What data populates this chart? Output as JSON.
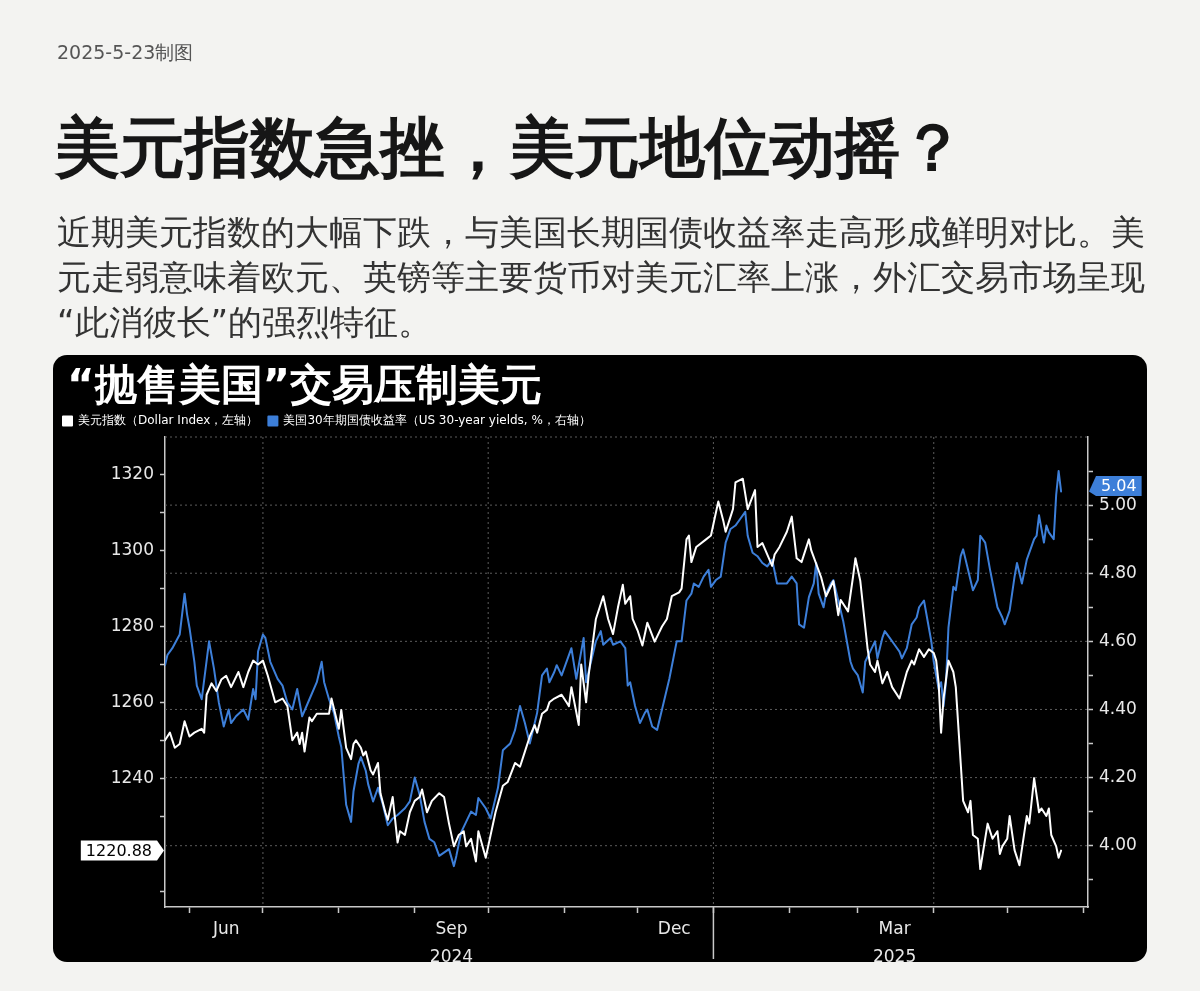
{
  "chart_data": {
    "type": "line",
    "title": "美元指数急挫，美元地位动摇？",
    "subtitle": "近期美元指数的大幅下跌，与美国长期国债收益率走高形成鲜明对比。美元走弱意味着欧元、英镑等主要货币对美元汇率上涨，外汇交易市场呈现“此消彼长”的强烈特征。",
    "annotations": [
      "2025-5-23制图",
      "“抛售美国”交易压制美元"
    ],
    "legend": "top left",
    "grid": true,
    "xlim": [
      "2024-05-22",
      "2025-06-03"
    ],
    "xticks": [
      {
        "value": "2024-06-01",
        "label": null
      },
      {
        "value": "2024-06-16",
        "label": "Jun"
      },
      {
        "value": "2024-07-01",
        "label": null
      },
      {
        "value": "2024-08-01",
        "label": null
      },
      {
        "value": "2024-09-01",
        "label": null
      },
      {
        "value": "2024-09-16",
        "label": "Sep\n2024"
      },
      {
        "value": "2024-10-01",
        "label": null
      },
      {
        "value": "2024-11-01",
        "label": null
      },
      {
        "value": "2024-12-01",
        "label": null
      },
      {
        "value": "2024-12-16",
        "label": "Dec"
      },
      {
        "value": "2025-01-01",
        "label": null
      },
      {
        "value": "2025-02-01",
        "label": null
      },
      {
        "value": "2025-03-01",
        "label": null
      },
      {
        "value": "2025-03-16",
        "label": "Mar\n2025"
      },
      {
        "value": "2025-04-01",
        "label": null
      },
      {
        "value": "2025-05-01",
        "label": null
      },
      {
        "value": "2025-06-01",
        "label": null
      }
    ],
    "ylim": [
      1206,
      1330
    ],
    "yticks": [
      {
        "value": 1210,
        "label": null
      },
      {
        "value": 1220.88,
        "label": "1220.88"
      },
      {
        "value": 1230,
        "label": null
      },
      1240,
      {
        "value": 1250,
        "label": null
      },
      1260,
      {
        "value": 1270,
        "label": null
      },
      1280,
      {
        "value": 1290,
        "label": null
      },
      1300,
      {
        "value": 1310,
        "label": null
      },
      1320
    ],
    "y2lim": [
      3.82,
      5.2
    ],
    "y2ticks": [
      {
        "value": 3.9,
        "label": null
      },
      {
        "value": 4,
        "label": "4.00"
      },
      {
        "value": 4.1,
        "label": null
      },
      {
        "value": 4.2,
        "label": "4.20"
      },
      {
        "value": 4.3,
        "label": null
      },
      {
        "value": 4.4,
        "label": "4.40"
      },
      {
        "value": 4.5,
        "label": null
      },
      {
        "value": 4.6,
        "label": "4.60"
      },
      {
        "value": 4.7,
        "label": null
      },
      {
        "value": 4.8,
        "label": "4.80"
      },
      {
        "value": 4.9,
        "label": null
      },
      {
        "value": 5,
        "label": "5.00"
      },
      {
        "value": 5.04,
        "label": "5.04"
      },
      {
        "value": 5.1,
        "label": null
      }
    ],
    "series": [
      {
        "name": "美元指数（Dollar Index，左轴）",
        "color": "#ffffff",
        "axis": "y",
        "x": [
          "2024-05-22",
          "2024-05-24",
          "2024-05-26",
          "2024-05-28",
          "2024-05-30",
          "2024-06-01",
          "2024-06-03",
          "2024-06-06",
          "2024-06-07",
          "2024-06-08",
          "2024-06-10",
          "2024-06-12",
          "2024-06-14",
          "2024-06-16",
          "2024-06-18",
          "2024-06-21",
          "2024-06-23",
          "2024-06-25",
          "2024-06-27",
          "2024-06-29",
          "2024-07-01",
          "2024-07-03",
          "2024-07-06",
          "2024-07-09",
          "2024-07-11",
          "2024-07-13",
          "2024-07-15",
          "2024-07-16",
          "2024-07-17",
          "2024-07-18",
          "2024-07-20",
          "2024-07-21",
          "2024-07-23",
          "2024-07-28",
          "2024-07-29",
          "2024-08-01",
          "2024-08-02",
          "2024-08-04",
          "2024-08-06",
          "2024-08-07",
          "2024-08-08",
          "2024-08-10",
          "2024-08-11",
          "2024-08-12",
          "2024-08-14",
          "2024-08-15",
          "2024-08-17",
          "2024-08-18",
          "2024-08-20",
          "2024-08-21",
          "2024-08-23",
          "2024-08-25",
          "2024-08-26",
          "2024-08-28",
          "2024-08-30",
          "2024-09-01",
          "2024-09-03",
          "2024-09-04",
          "2024-09-06",
          "2024-09-08",
          "2024-09-11",
          "2024-09-13",
          "2024-09-15",
          "2024-09-17",
          "2024-09-19",
          "2024-09-21",
          "2024-09-22",
          "2024-09-24",
          "2024-09-26",
          "2024-09-27",
          "2024-09-30",
          "2024-10-01",
          "2024-10-04",
          "2024-10-07",
          "2024-10-09",
          "2024-10-12",
          "2024-10-14",
          "2024-10-16",
          "2024-10-18",
          "2024-10-20",
          "2024-10-21",
          "2024-10-23",
          "2024-10-25",
          "2024-10-26",
          "2024-10-28",
          "2024-10-31",
          "2024-11-02",
          "2024-11-03",
          "2024-11-04",
          "2024-11-07",
          "2024-11-08",
          "2024-11-10",
          "2024-11-11",
          "2024-11-14",
          "2024-11-17",
          "2024-11-19",
          "2024-11-21",
          "2024-11-23",
          "2024-11-25",
          "2024-11-26",
          "2024-11-28",
          "2024-11-29",
          "2024-12-01",
          "2024-12-03",
          "2024-12-05",
          "2024-12-08",
          "2024-12-11",
          "2024-12-13",
          "2024-12-15",
          "2024-12-18",
          "2024-12-19",
          "2024-12-21",
          "2024-12-22",
          "2024-12-23",
          "2024-12-25",
          "2024-12-29",
          "2024-12-31",
          "2025-01-03",
          "2025-01-05",
          "2025-01-06",
          "2025-01-08",
          "2025-01-09",
          "2025-01-10",
          "2025-01-13",
          "2025-01-14",
          "2025-01-15",
          "2025-01-18",
          "2025-01-19",
          "2025-01-21",
          "2025-01-25",
          "2025-01-26",
          "2025-01-28",
          "2025-01-31",
          "2025-02-02",
          "2025-02-04",
          "2025-02-06",
          "2025-02-09",
          "2025-02-10",
          "2025-02-14",
          "2025-02-16",
          "2025-02-19",
          "2025-02-21",
          "2025-02-22",
          "2025-02-25",
          "2025-02-27",
          "2025-02-28",
          "2025-03-02",
          "2025-03-05",
          "2025-03-06",
          "2025-03-08",
          "2025-03-09",
          "2025-03-11",
          "2025-03-13",
          "2025-03-15",
          "2025-03-18",
          "2025-03-21",
          "2025-03-23",
          "2025-03-24",
          "2025-03-26",
          "2025-03-28",
          "2025-03-30",
          "2025-04-01",
          "2025-04-02",
          "2025-04-03",
          "2025-04-04",
          "2025-04-05",
          "2025-04-07",
          "2025-04-09",
          "2025-04-10",
          "2025-04-12",
          "2025-04-13",
          "2025-04-15",
          "2025-04-16",
          "2025-04-17",
          "2025-04-19",
          "2025-04-20",
          "2025-04-23",
          "2025-04-25",
          "2025-04-27",
          "2025-04-28",
          "2025-04-29",
          "2025-05-01",
          "2025-05-02",
          "2025-05-04",
          "2025-05-06",
          "2025-05-09",
          "2025-05-10",
          "2025-05-12",
          "2025-05-14",
          "2025-05-15",
          "2025-05-17",
          "2025-05-18",
          "2025-05-19",
          "2025-05-21",
          "2025-05-22",
          "2025-05-23"
        ],
        "values": [
          1250,
          1252,
          1248,
          1249,
          1255,
          1251,
          1252,
          1253,
          1252,
          1262,
          1265,
          1263,
          1266,
          1267,
          1264,
          1268,
          1264,
          1268,
          1271,
          1270,
          1271,
          1267,
          1260,
          1261,
          1259,
          1250,
          1252,
          1249,
          1252,
          1247,
          1256,
          1255,
          1257,
          1257,
          1261,
          1253,
          1258,
          1248,
          1245,
          1249,
          1250,
          1248,
          1246,
          1247,
          1242,
          1241,
          1244,
          1236,
          1231,
          1229,
          1235,
          1223,
          1226,
          1225,
          1231,
          1234,
          1235,
          1237,
          1231,
          1234,
          1236,
          1235,
          1228,
          1222,
          1225,
          1226,
          1222,
          1224,
          1218,
          1226,
          1219,
          1222,
          1231,
          1238,
          1239,
          1244,
          1243,
          1247,
          1251,
          1254,
          1252,
          1257,
          1258,
          1260,
          1261,
          1262,
          1260,
          1259,
          1264,
          1254,
          1270,
          1260,
          1267,
          1282,
          1288,
          1282,
          1278,
          1285,
          1291,
          1286,
          1288,
          1282,
          1279,
          1275,
          1281,
          1276,
          1280,
          1282,
          1288,
          1289,
          1290,
          1303,
          1304,
          1297,
          1301,
          1303,
          1304,
          1313,
          1308,
          1305,
          1309,
          1311,
          1318,
          1319,
          1315,
          1311,
          1316,
          1301,
          1302,
          1296,
          1299,
          1301,
          1305,
          1309,
          1298,
          1297,
          1303,
          1300,
          1293,
          1288,
          1292,
          1283,
          1287,
          1284,
          1293,
          1298,
          1292,
          1274,
          1270,
          1268,
          1271,
          1265,
          1268,
          1264,
          1261,
          1268,
          1271,
          1270,
          1274,
          1272,
          1274,
          1273,
          1271,
          1265,
          1252,
          1261,
          1271,
          1268,
          1264,
          1244,
          1234,
          1231,
          1234,
          1225,
          1224,
          1216,
          1228,
          1224,
          1226,
          1220,
          1222,
          1224,
          1230,
          1221,
          1217,
          1230,
          1228,
          1240,
          1231,
          1232,
          1230,
          1232,
          1225,
          1222,
          1219,
          1220.88
        ]
      },
      {
        "name": "美国30年期国债收益率（US 30-year yields, %，右轴）",
        "color": "#3d7fd9",
        "axis": "y2",
        "x": [
          "2024-05-22",
          "2024-05-23",
          "2024-05-25",
          "2024-05-28",
          "2024-05-30",
          "2024-05-31",
          "2024-06-01",
          "2024-06-03",
          "2024-06-04",
          "2024-06-06",
          "2024-06-09",
          "2024-06-11",
          "2024-06-13",
          "2024-06-15",
          "2024-06-17",
          "2024-06-18",
          "2024-06-20",
          "2024-06-23",
          "2024-06-25",
          "2024-06-27",
          "2024-06-28",
          "2024-06-29",
          "2024-07-01",
          "2024-07-02",
          "2024-07-04",
          "2024-07-07",
          "2024-07-09",
          "2024-07-11",
          "2024-07-13",
          "2024-07-15",
          "2024-07-17",
          "2024-07-20",
          "2024-07-23",
          "2024-07-25",
          "2024-07-26",
          "2024-07-28",
          "2024-07-30",
          "2024-08-01",
          "2024-08-02",
          "2024-08-04",
          "2024-08-06",
          "2024-08-07",
          "2024-08-09",
          "2024-08-10",
          "2024-08-12",
          "2024-08-13",
          "2024-08-15",
          "2024-08-17",
          "2024-08-19",
          "2024-08-21",
          "2024-08-23",
          "2024-08-25",
          "2024-08-28",
          "2024-08-30",
          "2024-09-01",
          "2024-09-03",
          "2024-09-05",
          "2024-09-07",
          "2024-09-09",
          "2024-09-11",
          "2024-09-15",
          "2024-09-17",
          "2024-09-18",
          "2024-09-20",
          "2024-09-22",
          "2024-09-24",
          "2024-09-26",
          "2024-09-27",
          "2024-09-30",
          "2024-10-02",
          "2024-10-05",
          "2024-10-07",
          "2024-10-10",
          "2024-10-12",
          "2024-10-14",
          "2024-10-16",
          "2024-10-18",
          "2024-10-20",
          "2024-10-21",
          "2024-10-23",
          "2024-10-25",
          "2024-10-26",
          "2024-10-28",
          "2024-10-29",
          "2024-10-31",
          "2024-11-04",
          "2024-11-06",
          "2024-11-09",
          "2024-11-10",
          "2024-11-12",
          "2024-11-14",
          "2024-11-16",
          "2024-11-17",
          "2024-11-20",
          "2024-11-21",
          "2024-11-24",
          "2024-11-26",
          "2024-11-27",
          "2024-11-28",
          "2024-11-30",
          "2024-12-02",
          "2024-12-04",
          "2024-12-05",
          "2024-12-07",
          "2024-12-09",
          "2024-12-11",
          "2024-12-14",
          "2024-12-17",
          "2024-12-19",
          "2024-12-21",
          "2024-12-23",
          "2024-12-24",
          "2024-12-26",
          "2024-12-28",
          "2024-12-30",
          "2024-12-31",
          "2025-01-02",
          "2025-01-04",
          "2025-01-06",
          "2025-01-08",
          "2025-01-10",
          "2025-01-12",
          "2025-01-14",
          "2025-01-15",
          "2025-01-17",
          "2025-01-19",
          "2025-01-21",
          "2025-01-23",
          "2025-01-25",
          "2025-01-27",
          "2025-01-31",
          "2025-02-02",
          "2025-02-04",
          "2025-02-05",
          "2025-02-07",
          "2025-02-09",
          "2025-02-11",
          "2025-02-12",
          "2025-02-13",
          "2025-02-15",
          "2025-02-16",
          "2025-02-18",
          "2025-02-19",
          "2025-02-21",
          "2025-02-22",
          "2025-02-23",
          "2025-02-26",
          "2025-02-27",
          "2025-03-01",
          "2025-03-03",
          "2025-03-04",
          "2025-03-06",
          "2025-03-08",
          "2025-03-09",
          "2025-03-11",
          "2025-03-12",
          "2025-03-14",
          "2025-03-16",
          "2025-03-18",
          "2025-03-19",
          "2025-03-21",
          "2025-03-23",
          "2025-03-25",
          "2025-03-26",
          "2025-03-28",
          "2025-03-30",
          "2025-03-31",
          "2025-04-01",
          "2025-04-03",
          "2025-04-04",
          "2025-04-05",
          "2025-04-06",
          "2025-04-07",
          "2025-04-09",
          "2025-04-10",
          "2025-04-12",
          "2025-04-13",
          "2025-04-15",
          "2025-04-17",
          "2025-04-19",
          "2025-04-20",
          "2025-04-22",
          "2025-04-24",
          "2025-04-27",
          "2025-04-29",
          "2025-04-30",
          "2025-05-02",
          "2025-05-04",
          "2025-05-05",
          "2025-05-06",
          "2025-05-07",
          "2025-05-09",
          "2025-05-12",
          "2025-05-13",
          "2025-05-14",
          "2025-05-16",
          "2025-05-17",
          "2025-05-18",
          "2025-05-20",
          "2025-05-21",
          "2025-05-22",
          "2025-05-23"
        ],
        "values": [
          4.53,
          4.56,
          4.58,
          4.62,
          4.74,
          4.68,
          4.64,
          4.54,
          4.47,
          4.43,
          4.6,
          4.52,
          4.42,
          4.35,
          4.4,
          4.36,
          4.38,
          4.4,
          4.37,
          4.46,
          4.43,
          4.57,
          4.62,
          4.61,
          4.54,
          4.49,
          4.47,
          4.42,
          4.4,
          4.46,
          4.38,
          4.43,
          4.48,
          4.54,
          4.48,
          4.43,
          4.39,
          4.32,
          4.29,
          4.12,
          4.07,
          4.16,
          4.24,
          4.26,
          4.22,
          4.18,
          4.13,
          4.17,
          4.12,
          4.06,
          4.08,
          4.09,
          4.11,
          4.13,
          4.2,
          4.15,
          4.07,
          4.02,
          4.01,
          3.97,
          3.99,
          3.94,
          3.97,
          4.04,
          4.07,
          4.1,
          4.09,
          4.14,
          4.11,
          4.08,
          4.17,
          4.28,
          4.3,
          4.34,
          4.41,
          4.36,
          4.3,
          4.36,
          4.39,
          4.5,
          4.52,
          4.48,
          4.51,
          4.53,
          4.5,
          4.58,
          4.49,
          4.61,
          4.48,
          4.54,
          4.6,
          4.63,
          4.59,
          4.61,
          4.59,
          4.6,
          4.58,
          4.47,
          4.48,
          4.41,
          4.36,
          4.39,
          4.4,
          4.35,
          4.34,
          4.4,
          4.49,
          4.6,
          4.6,
          4.72,
          4.74,
          4.77,
          4.76,
          4.79,
          4.81,
          4.76,
          4.78,
          4.79,
          4.89,
          4.93,
          4.94,
          4.96,
          4.98,
          4.91,
          4.86,
          4.85,
          4.83,
          4.82,
          4.84,
          4.77,
          4.77,
          4.79,
          4.77,
          4.65,
          4.64,
          4.73,
          4.77,
          4.83,
          4.74,
          4.7,
          4.74,
          4.77,
          4.78,
          4.72,
          4.69,
          4.66,
          4.54,
          4.52,
          4.5,
          4.45,
          4.54,
          4.57,
          4.6,
          4.55,
          4.61,
          4.63,
          4.61,
          4.59,
          4.57,
          4.55,
          4.58,
          4.65,
          4.67,
          4.7,
          4.72,
          4.64,
          4.6,
          4.54,
          4.46,
          4.48,
          4.41,
          4.48,
          4.64,
          4.76,
          4.75,
          4.85,
          4.87,
          4.81,
          4.75,
          4.78,
          4.91,
          4.89,
          4.81,
          4.7,
          4.67,
          4.65,
          4.69,
          4.79,
          4.83,
          4.8,
          4.77,
          4.84,
          4.9,
          4.91,
          4.97,
          4.89,
          4.94,
          4.92,
          4.9,
          5.03,
          5.1,
          5.04
        ]
      }
    ]
  }
}
